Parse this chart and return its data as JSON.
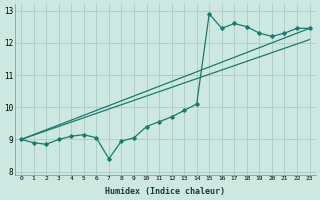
{
  "xlabel": "Humidex (Indice chaleur)",
  "xlim": [
    -0.5,
    23.5
  ],
  "ylim": [
    7.9,
    13.2
  ],
  "yticks": [
    8,
    9,
    10,
    11,
    12,
    13
  ],
  "xticks": [
    0,
    1,
    2,
    3,
    4,
    5,
    6,
    7,
    8,
    9,
    10,
    11,
    12,
    13,
    14,
    15,
    16,
    17,
    18,
    19,
    20,
    21,
    22,
    23
  ],
  "bg_color": "#cce8e0",
  "grid_color": "#aaccC4",
  "line_color": "#1a7a6e",
  "zigzag": {
    "x": [
      0,
      1,
      2,
      3,
      4,
      5,
      6,
      7,
      8,
      9,
      10,
      11,
      12,
      13,
      14,
      15,
      16,
      17,
      18,
      19,
      20,
      21,
      22,
      23
    ],
    "y": [
      9.0,
      8.9,
      8.85,
      9.0,
      9.1,
      9.15,
      9.05,
      8.4,
      8.95,
      9.05,
      9.4,
      9.55,
      9.7,
      9.9,
      10.1,
      12.9,
      12.45,
      12.6,
      12.5,
      12.3,
      12.2,
      12.3,
      12.45,
      12.45
    ]
  },
  "line_straight1": {
    "x": [
      0,
      23
    ],
    "y": [
      9.0,
      12.45
    ]
  },
  "line_straight2": {
    "x": [
      0,
      23
    ],
    "y": [
      9.0,
      12.1
    ]
  }
}
